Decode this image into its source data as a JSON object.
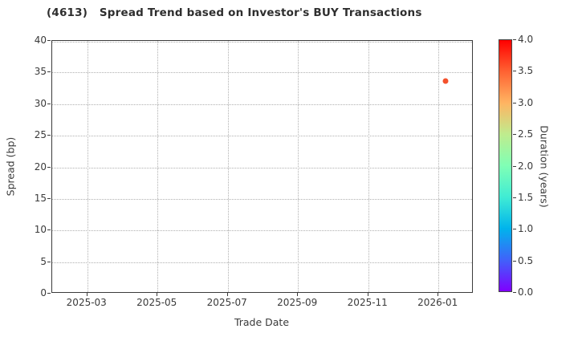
{
  "chart_data": {
    "type": "scatter",
    "title": "(4613)   Spread Trend based on Investor's BUY Transactions",
    "xlabel": "Trade Date",
    "ylabel": "Spread (bp)",
    "grid": {
      "show": true,
      "style": "dotted"
    },
    "x_axis": {
      "range_months": [
        0,
        12
      ],
      "ticks": [
        {
          "label": "2025-03",
          "pos": 1
        },
        {
          "label": "2025-05",
          "pos": 3
        },
        {
          "label": "2025-07",
          "pos": 5
        },
        {
          "label": "2025-09",
          "pos": 7
        },
        {
          "label": "2025-11",
          "pos": 9
        },
        {
          "label": "2026-01",
          "pos": 11
        }
      ]
    },
    "y_axis": {
      "range": [
        0,
        40
      ],
      "ticks": [
        0,
        5,
        10,
        15,
        20,
        25,
        30,
        35,
        40
      ]
    },
    "points": [
      {
        "date": "2026-01-07",
        "x_months": 11.2,
        "spread_bp": 33.6,
        "duration_years": 3.6,
        "color": "#f4512c"
      }
    ],
    "colorbar": {
      "label": "Duration (years)",
      "range": [
        0,
        4
      ],
      "ticks": [
        "0.0",
        "0.5",
        "1.0",
        "1.5",
        "2.0",
        "2.5",
        "3.0",
        "3.5",
        "4.0"
      ],
      "colormap": "rainbow",
      "gradient": [
        {
          "t": 0.0,
          "color": "#7f00ff"
        },
        {
          "t": 0.125,
          "color": "#4062fa"
        },
        {
          "t": 0.25,
          "color": "#00b4ec"
        },
        {
          "t": 0.375,
          "color": "#40ecd4"
        },
        {
          "t": 0.5,
          "color": "#80ffb5"
        },
        {
          "t": 0.625,
          "color": "#bfec8e"
        },
        {
          "t": 0.75,
          "color": "#ffb462"
        },
        {
          "t": 0.875,
          "color": "#ff6232"
        },
        {
          "t": 1.0,
          "color": "#ff0000"
        }
      ]
    }
  }
}
